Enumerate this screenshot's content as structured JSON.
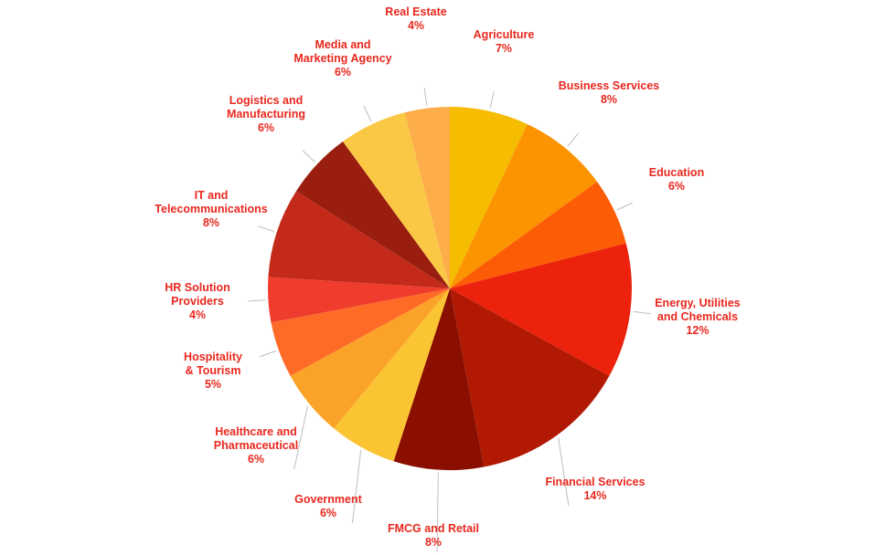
{
  "chart_data": {
    "type": "pie",
    "title": "",
    "label_color": "#e8281e",
    "slices": [
      {
        "label": [
          "Agriculture"
        ],
        "value": 7,
        "value_label": "7%",
        "color": "#f5bc00"
      },
      {
        "label": [
          "Business Services"
        ],
        "value": 8,
        "value_label": "8%",
        "color": "#fb9400"
      },
      {
        "label": [
          "Education"
        ],
        "value": 6,
        "value_label": "6%",
        "color": "#fd5c06"
      },
      {
        "label": [
          "Energy, Utilities",
          "and Chemicals"
        ],
        "value": 12,
        "value_label": "12%",
        "color": "#ec220d"
      },
      {
        "label": [
          "Financial Services"
        ],
        "value": 14,
        "value_label": "14%",
        "color": "#b21903"
      },
      {
        "label": [
          "FMCG and Retail"
        ],
        "value": 8,
        "value_label": "8%",
        "color": "#8a0f00"
      },
      {
        "label": [
          "Government"
        ],
        "value": 6,
        "value_label": "6%",
        "color": "#fbc432"
      },
      {
        "label": [
          "Healthcare and",
          "Pharmaceutical"
        ],
        "value": 6,
        "value_label": "6%",
        "color": "#fba228"
      },
      {
        "label": [
          "Hospitality",
          "& Tourism"
        ],
        "value": 5,
        "value_label": "5%",
        "color": "#fd6b27"
      },
      {
        "label": [
          "HR Solution",
          "Providers"
        ],
        "value": 4,
        "value_label": "4%",
        "color": "#ef3c2c"
      },
      {
        "label": [
          "IT and",
          "Telecommunications"
        ],
        "value": 8,
        "value_label": "8%",
        "color": "#c42a1a"
      },
      {
        "label": [
          "Logistics and",
          "Manufacturing"
        ],
        "value": 6,
        "value_label": "6%",
        "color": "#9a1e10"
      },
      {
        "label": [
          "Media and",
          "Marketing Agency"
        ],
        "value": 6,
        "value_label": "6%",
        "color": "#fbc845"
      },
      {
        "label": [
          "Real Estate"
        ],
        "value": 4,
        "value_label": "4%",
        "color": "#fdad4a"
      }
    ]
  }
}
